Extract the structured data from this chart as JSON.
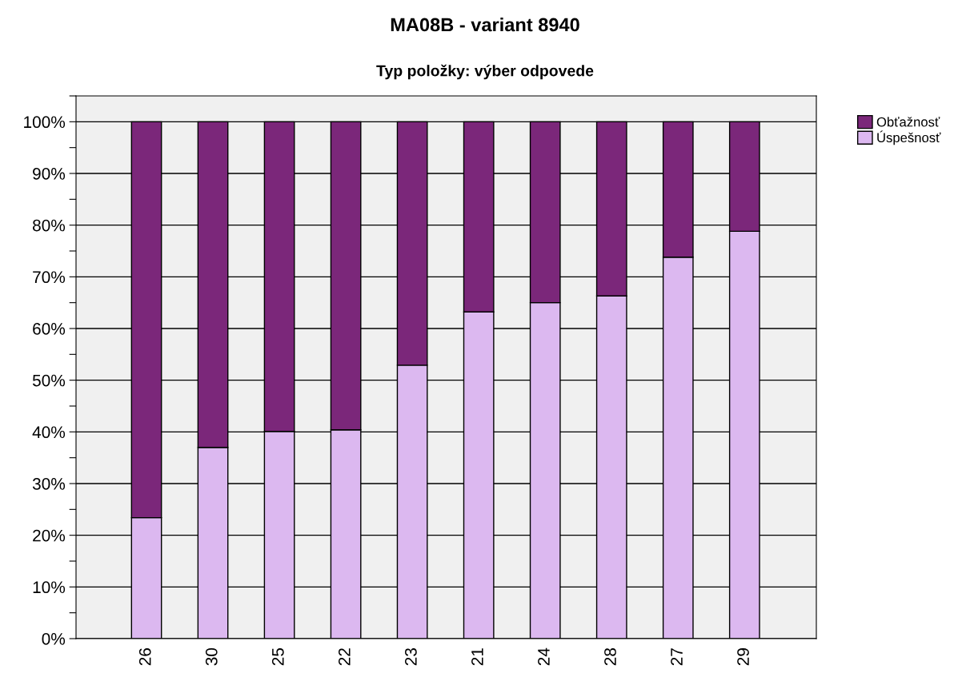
{
  "chart_data": {
    "type": "bar",
    "title": "MA08B - variant 8940",
    "subtitle": "Typ položky: výber odpovede",
    "categories": [
      "26",
      "30",
      "25",
      "22",
      "23",
      "21",
      "24",
      "28",
      "27",
      "29"
    ],
    "stacked": true,
    "series": [
      {
        "name": "Úspešnosť",
        "color": "#dcb8f0",
        "values": [
          23.4,
          37.0,
          40.1,
          40.4,
          52.9,
          63.2,
          65.0,
          66.3,
          73.8,
          78.8
        ]
      },
      {
        "name": "Obťažnosť",
        "color": "#7b277a",
        "values": [
          76.6,
          63.0,
          59.9,
          59.6,
          47.1,
          36.8,
          35.0,
          33.7,
          26.2,
          21.2
        ]
      }
    ],
    "ylim": [
      0,
      105
    ],
    "yticks": [
      {
        "value": 0,
        "label": "0%"
      },
      {
        "value": 5,
        "label": null
      },
      {
        "value": 10,
        "label": "10%"
      },
      {
        "value": 15,
        "label": null
      },
      {
        "value": 20,
        "label": "20%"
      },
      {
        "value": 25,
        "label": null
      },
      {
        "value": 30,
        "label": "30%"
      },
      {
        "value": 35,
        "label": null
      },
      {
        "value": 40,
        "label": "40%"
      },
      {
        "value": 45,
        "label": null
      },
      {
        "value": 50,
        "label": "50%"
      },
      {
        "value": 55,
        "label": null
      },
      {
        "value": 60,
        "label": "60%"
      },
      {
        "value": 65,
        "label": null
      },
      {
        "value": 70,
        "label": "70%"
      },
      {
        "value": 75,
        "label": null
      },
      {
        "value": 80,
        "label": "80%"
      },
      {
        "value": 85,
        "label": null
      },
      {
        "value": 90,
        "label": "90%"
      },
      {
        "value": 95,
        "label": null
      },
      {
        "value": 100,
        "label": "100%"
      },
      {
        "value": 105,
        "label": null
      }
    ],
    "grid": "y",
    "legend": "top right"
  }
}
